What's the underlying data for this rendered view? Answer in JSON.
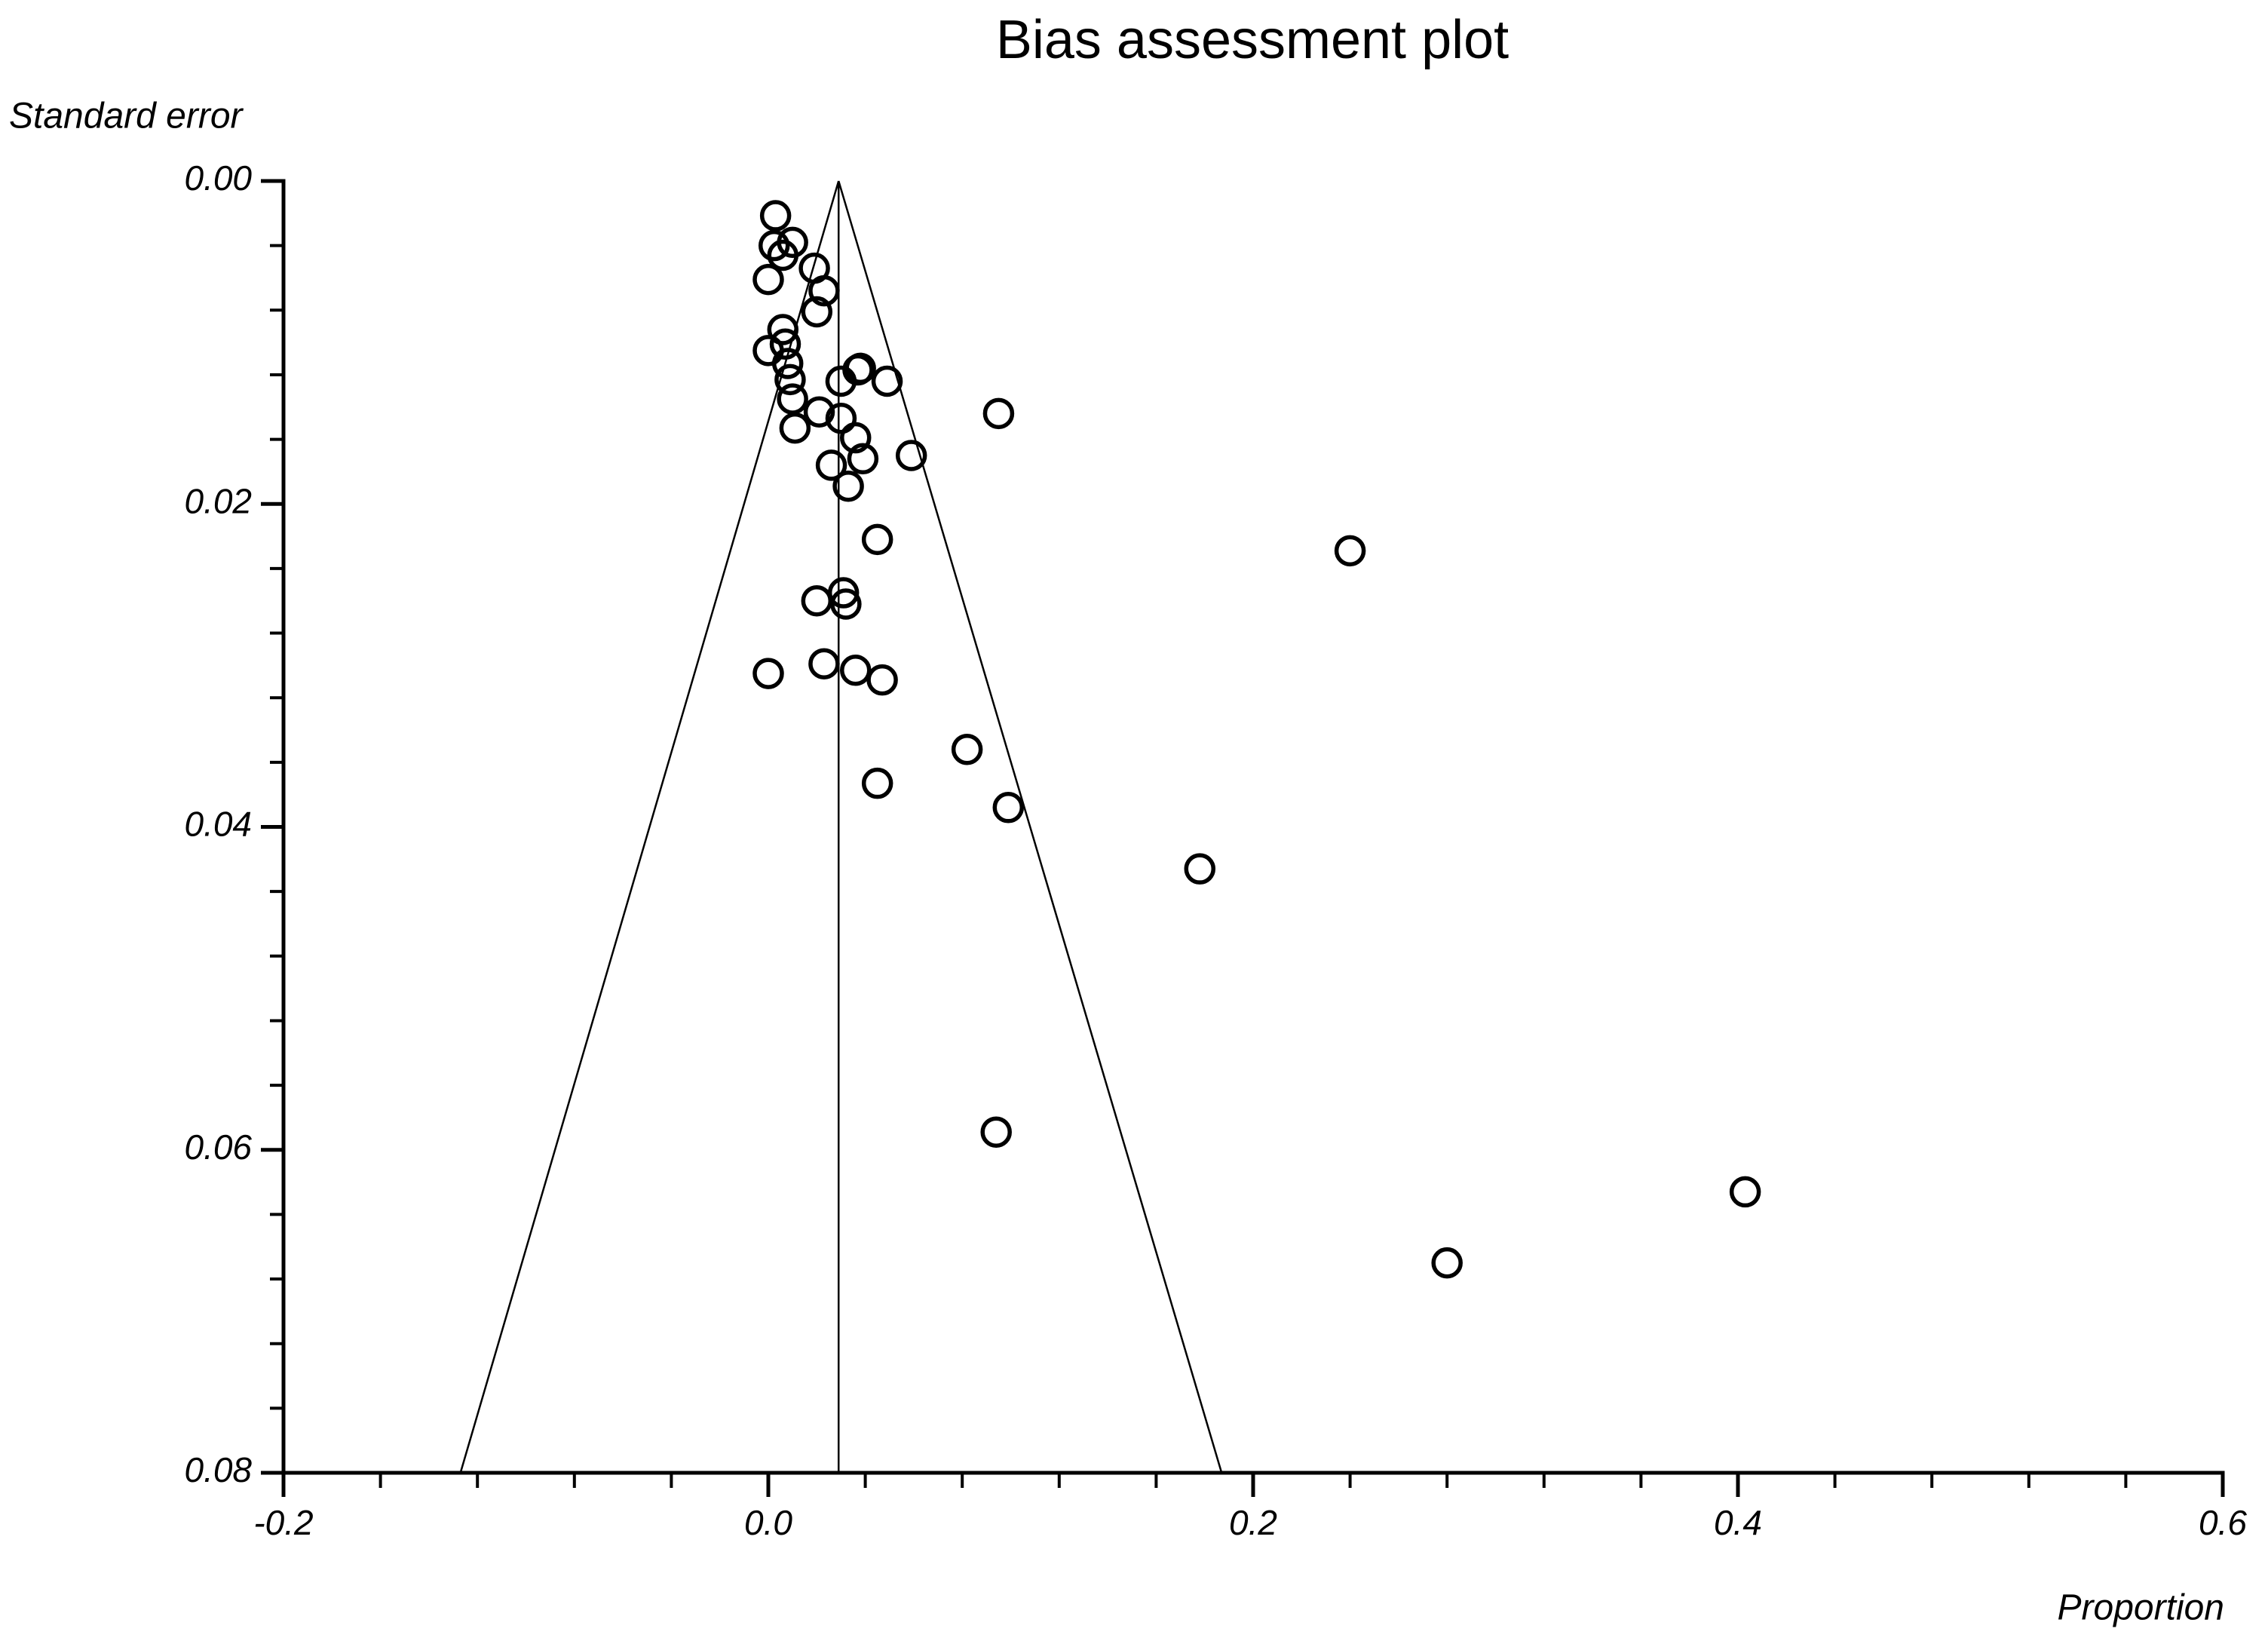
{
  "chart_data": {
    "type": "funnel",
    "title": "Bias assessment plot",
    "y_label": "Standard error",
    "x_label": "Proportion",
    "y_inverted": true,
    "xlim": [
      -0.2,
      0.6
    ],
    "ylim": [
      0,
      0.08
    ],
    "xticks": [
      -0.2,
      {
        "value": 0,
        "label": "0.0"
      },
      0.2,
      0.4,
      0.6
    ],
    "yticks": [
      {
        "value": 0,
        "label": "0.00"
      },
      {
        "value": 0.02,
        "label": "0.02"
      },
      {
        "value": 0.04,
        "label": "0.04"
      },
      {
        "value": 0.06,
        "label": "0.06"
      },
      {
        "value": 0.08,
        "label": "0.08"
      }
    ],
    "xminor_ticks": [
      -0.16,
      -0.12,
      -0.08,
      -0.04,
      0.04,
      0.08,
      0.12,
      0.16,
      0.24,
      0.28,
      0.32,
      0.36,
      0.44,
      0.48,
      0.52,
      0.56
    ],
    "yminor_ticks": [
      0.004,
      0.008,
      0.012,
      0.016,
      0.024,
      0.028,
      0.032,
      0.036,
      0.044,
      0.048,
      0.052,
      0.056,
      0.064,
      0.068,
      0.072,
      0.076
    ],
    "pooled_estimate": 0.029,
    "funnel_base": [
      -0.127,
      0.187
    ],
    "color": "#000000",
    "x": [
      0.003,
      0.0024,
      0.006,
      0.01,
      0.0,
      0.019,
      0.023,
      0.02,
      0.006,
      0.0,
      0.007,
      0.008,
      0.009,
      0.01,
      0.011,
      0.021,
      0.03,
      0.037,
      0.038,
      0.049,
      0.095,
      0.03,
      0.036,
      0.039,
      0.026,
      0.059,
      0.033,
      0.045,
      0.24,
      0.031,
      0.02,
      0.032,
      0.0,
      0.023,
      0.036,
      0.047,
      0.082,
      0.045,
      0.099,
      0.178,
      0.094,
      0.403,
      0.28
    ],
    "values": [
      0.00215,
      0.004,
      0.0046,
      0.0038,
      0.0061,
      0.0054,
      0.0068,
      0.0081,
      0.0092,
      0.0105,
      0.0101,
      0.0113,
      0.0123,
      0.0135,
      0.0153,
      0.0143,
      0.0124,
      0.0117,
      0.0116,
      0.0124,
      0.0144,
      0.0147,
      0.0159,
      0.0172,
      0.0176,
      0.017,
      0.0189,
      0.0222,
      0.0229,
      0.0255,
      0.026,
      0.0262,
      0.0305,
      0.0299,
      0.0303,
      0.0309,
      0.0352,
      0.0373,
      0.0388,
      0.0426,
      0.0589,
      0.0626,
      0.067
    ]
  }
}
